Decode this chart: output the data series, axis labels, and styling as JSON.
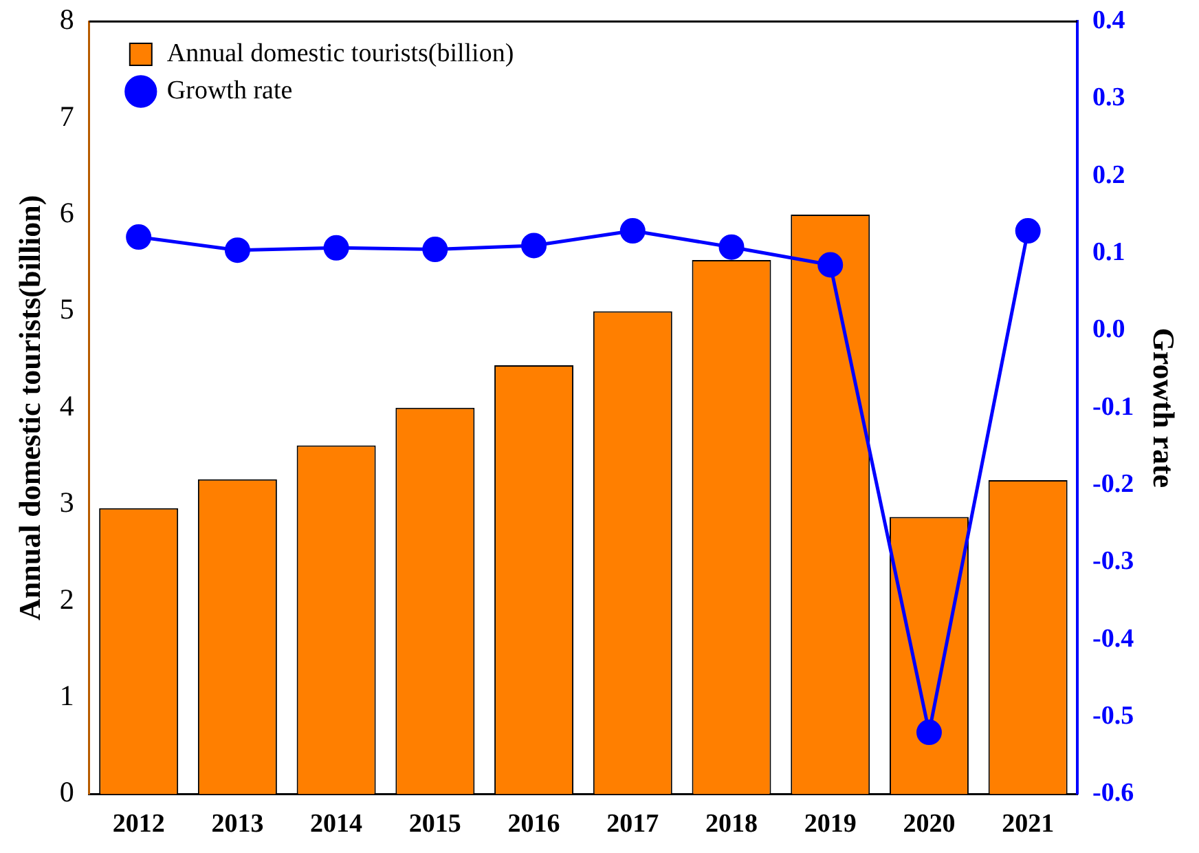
{
  "chart_data": {
    "type": "bar",
    "categories": [
      "2012",
      "2013",
      "2014",
      "2015",
      "2016",
      "2017",
      "2018",
      "2019",
      "2020",
      "2021"
    ],
    "series": [
      {
        "name": "Annual domestic tourists(billion)",
        "color": "#ff7f00",
        "values": [
          2.96,
          3.26,
          3.61,
          4.0,
          4.44,
          5.0,
          5.53,
          6.0,
          2.87,
          3.25
        ]
      },
      {
        "name": "Growth rate",
        "type": "line",
        "axis": "y2",
        "color": "#0000ff",
        "values": [
          0.121,
          0.104,
          0.107,
          0.105,
          0.11,
          0.129,
          0.108,
          0.085,
          -0.52,
          0.129
        ]
      }
    ],
    "ylabel": "Annual domestic tourists(billion)",
    "y2label": "Growth rate",
    "ylim": [
      0,
      8
    ],
    "yticks": [
      0,
      1,
      2,
      3,
      4,
      5,
      6,
      7,
      8
    ],
    "y2lim": [
      -0.6,
      0.4
    ],
    "y2ticks": [
      {
        "value": -0.6,
        "label": "-0.6"
      },
      {
        "value": -0.5,
        "label": "-0.5"
      },
      {
        "value": -0.4,
        "label": "-0.4"
      },
      {
        "value": -0.3,
        "label": "-0.3"
      },
      {
        "value": -0.2,
        "label": "-0.2"
      },
      {
        "value": -0.1,
        "label": "-0.1"
      },
      {
        "value": 0,
        "label": "0.0"
      },
      {
        "value": 0.1,
        "label": "0.1"
      },
      {
        "value": 0.2,
        "label": "0.2"
      },
      {
        "value": 0.3,
        "label": "0.3"
      },
      {
        "value": 0.4,
        "label": "0.4"
      }
    ],
    "grid": false,
    "legend": "top left",
    "marker": "circle",
    "line_style": "solid"
  }
}
